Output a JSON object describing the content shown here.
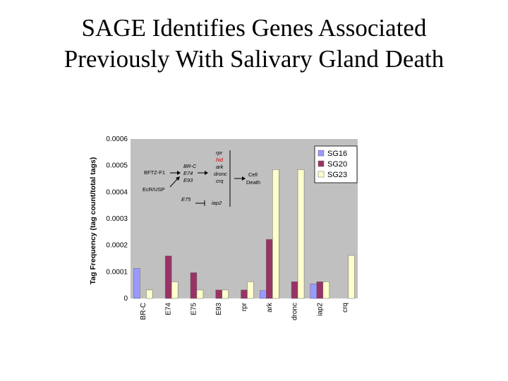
{
  "slide": {
    "title_line1": "SAGE Identifies Genes Associated",
    "title_line2": "Previously With Salivary Gland Death"
  },
  "chart_data": {
    "type": "bar",
    "ylabel": "Tag Frequency (tag count/total tags)",
    "ylim": [
      0,
      0.0006
    ],
    "yticks": [
      "0",
      "0.0001",
      "0.0002",
      "0.0003",
      "0.0004",
      "0.0005",
      "0.0006"
    ],
    "categories": [
      "BR-C",
      "E74",
      "E75",
      "E93",
      "rpr",
      "ark",
      "dronc",
      "iap2",
      "crq"
    ],
    "series": [
      {
        "name": "SG16",
        "color": "#9999ff",
        "values": [
          0.000113,
          0,
          0,
          0,
          0,
          3e-05,
          0,
          5.5e-05,
          0
        ]
      },
      {
        "name": "SG20",
        "color": "#993366",
        "values": [
          0,
          0.00016,
          9.7e-05,
          3.2e-05,
          3.2e-05,
          0.000222,
          6.3e-05,
          6.3e-05,
          0
        ]
      },
      {
        "name": "SG23",
        "color": "#ffffcc",
        "values": [
          3.2e-05,
          6.3e-05,
          3.2e-05,
          3.2e-05,
          6.3e-05,
          0.000485,
          0.000485,
          6.3e-05,
          0.000162
        ]
      }
    ],
    "legend_position": "top-right",
    "grid": false,
    "plot_background": "#c0c0c0",
    "pathway": {
      "bftz": "BFTZ-F1",
      "ecr": "EcR/USP",
      "brc": "BR-C",
      "e74": "E74",
      "e93": "E93",
      "e75": "E75",
      "rpr": "rpr",
      "hid": "hid",
      "ark": "ark",
      "dronc": "dronc",
      "crq": "crq",
      "iap2": "iap2",
      "cell1": "Cell",
      "cell2": "Death",
      "hid_color": "#cc0000"
    }
  }
}
